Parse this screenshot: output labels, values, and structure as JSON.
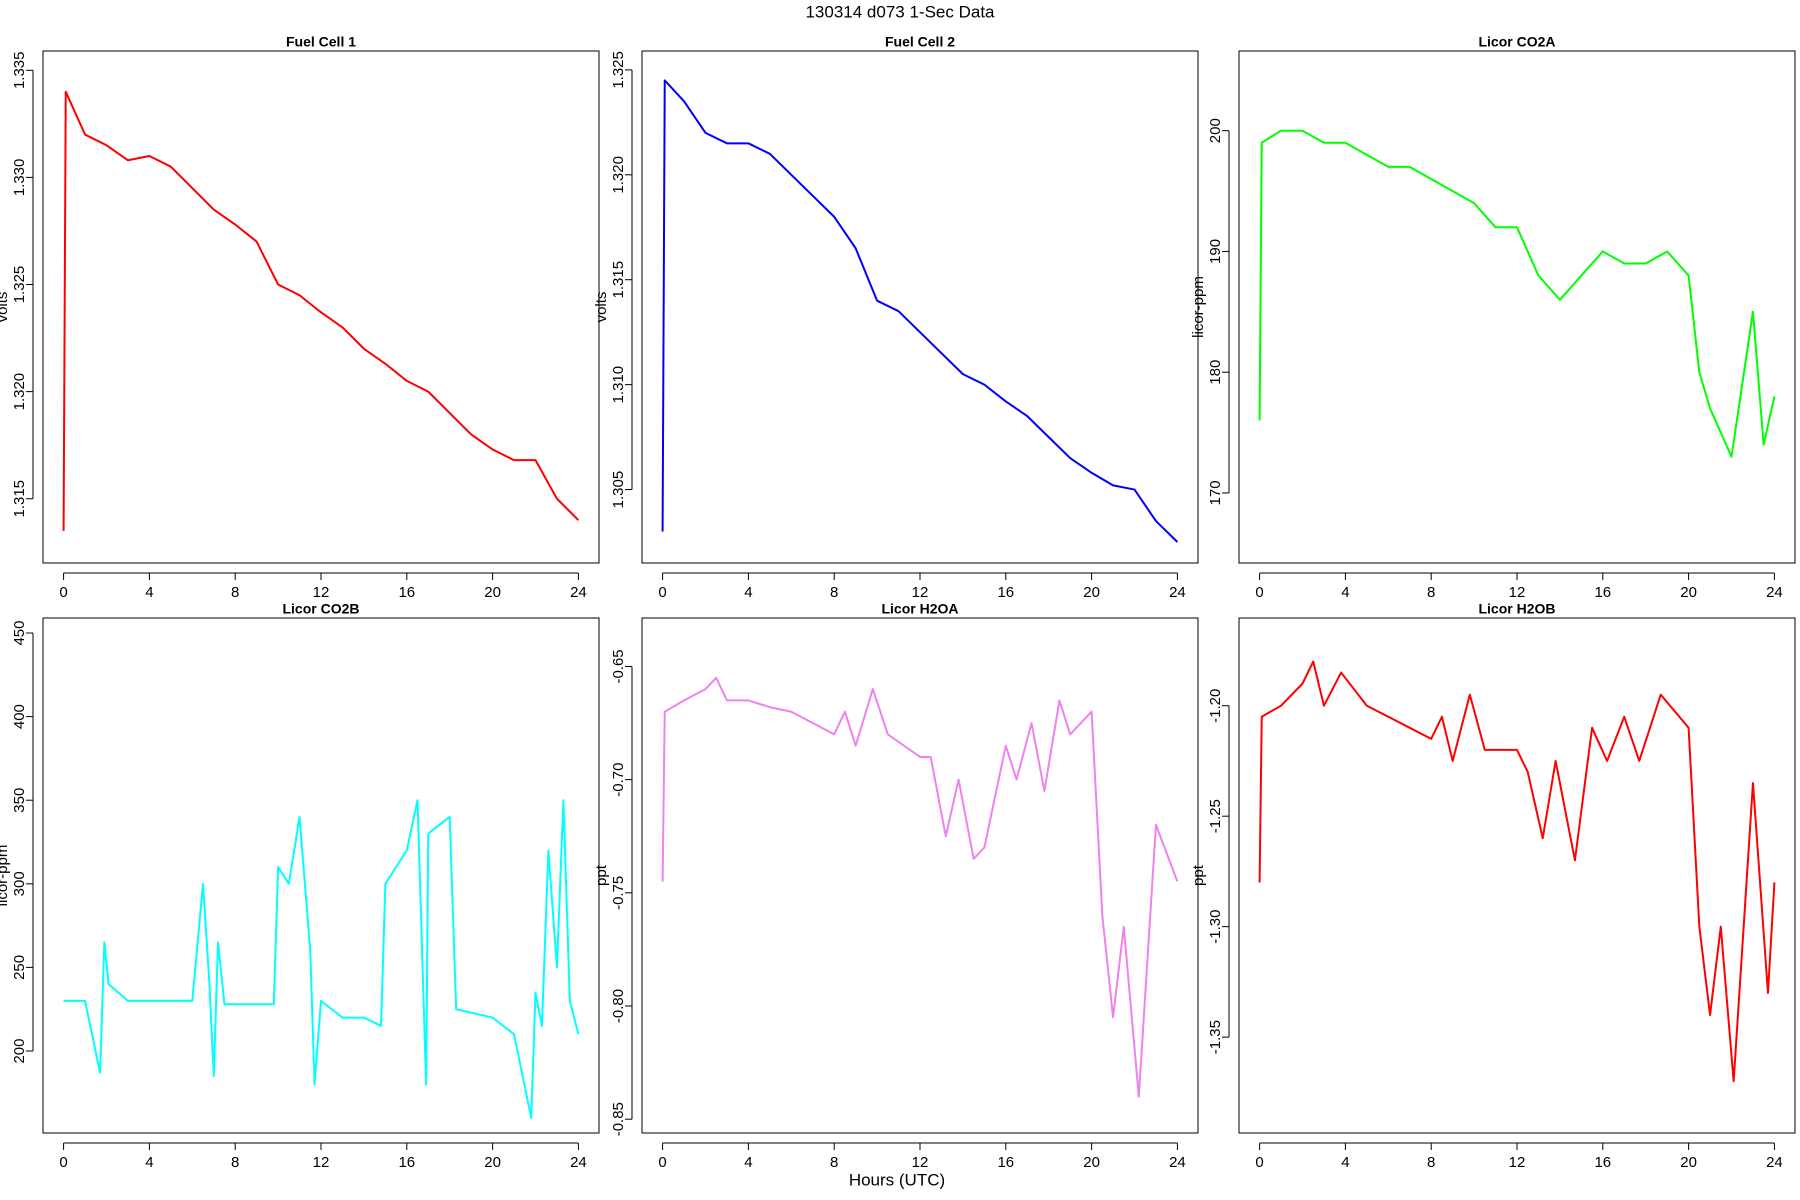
{
  "title": "130314   d073   1-Sec Data",
  "xlabel": "Hours (UTC)",
  "chart_data": [
    {
      "type": "line",
      "title": "Fuel Cell 1",
      "ylabel": "volts",
      "color": "#ff0000",
      "x": [
        0,
        0.1,
        1,
        2,
        3,
        4,
        5,
        6,
        7,
        8,
        9,
        10,
        11,
        12,
        13,
        14,
        15,
        16,
        17,
        18,
        19,
        20,
        21,
        22,
        23,
        24
      ],
      "values": [
        1.3135,
        1.334,
        1.332,
        1.3315,
        1.3308,
        1.331,
        1.3305,
        1.3295,
        1.3285,
        1.3278,
        1.327,
        1.325,
        1.3245,
        1.3237,
        1.323,
        1.322,
        1.3213,
        1.3205,
        1.32,
        1.319,
        1.318,
        1.3173,
        1.3168,
        1.3168,
        1.315,
        1.314
      ],
      "xlim": [
        -0.96,
        24.96
      ],
      "xticks": [
        0,
        4,
        8,
        12,
        16,
        20,
        24
      ],
      "ylim": [
        1.312,
        1.3359
      ],
      "yticks": [
        1.315,
        {
          "value": 1.32,
          "label": "1.320"
        },
        1.325,
        {
          "value": 1.33,
          "label": "1.330"
        },
        1.335
      ]
    },
    {
      "type": "line",
      "title": "Fuel Cell 2",
      "ylabel": "volts",
      "color": "#0000ff",
      "x": [
        0,
        0.1,
        1,
        2,
        3,
        4,
        5,
        6,
        7,
        8,
        9,
        10,
        11,
        12,
        13,
        14,
        15,
        16,
        17,
        18,
        19,
        20,
        21,
        22,
        23,
        24
      ],
      "values": [
        1.303,
        1.3245,
        1.3235,
        1.322,
        1.3215,
        1.3215,
        1.321,
        1.32,
        1.319,
        1.318,
        1.3165,
        1.314,
        1.3135,
        1.3125,
        1.3115,
        1.3105,
        1.31,
        1.3092,
        1.3085,
        1.3075,
        1.3065,
        1.3058,
        1.3052,
        1.305,
        1.3035,
        1.3025
      ],
      "xlim": [
        -0.96,
        24.96
      ],
      "xticks": [
        0,
        4,
        8,
        12,
        16,
        20,
        24
      ],
      "ylim": [
        1.3015,
        1.3259
      ],
      "yticks": [
        1.305,
        {
          "value": 1.31,
          "label": "1.310"
        },
        1.315,
        {
          "value": 1.32,
          "label": "1.320"
        },
        1.325
      ]
    },
    {
      "type": "line",
      "title": "Licor CO2A",
      "ylabel": "licor-ppm",
      "color": "#00ff00",
      "x": [
        0,
        0.1,
        1,
        2,
        3,
        4,
        5,
        6,
        7,
        8,
        9,
        10,
        11,
        12,
        13,
        14,
        15,
        16,
        17,
        18,
        19,
        20,
        20.5,
        21,
        22,
        23,
        23.5,
        24
      ],
      "values": [
        176,
        199,
        200,
        200,
        199,
        199,
        198,
        197,
        197,
        196,
        195,
        194,
        192,
        192,
        188,
        186,
        188,
        190,
        189,
        189,
        190,
        188,
        180,
        177,
        173,
        185,
        174,
        178
      ],
      "xlim": [
        -0.96,
        24.96
      ],
      "xticks": [
        0,
        4,
        8,
        12,
        16,
        20,
        24
      ],
      "ylim": [
        164.2,
        206.6
      ],
      "yticks": [
        170,
        180,
        190,
        200
      ]
    },
    {
      "type": "line",
      "title": "Licor CO2B",
      "ylabel": "licor-ppm",
      "color": "#00ffff",
      "x": [
        0,
        1,
        1.7,
        1.9,
        2.1,
        3,
        4,
        5,
        6,
        6.5,
        6.8,
        7,
        7.2,
        7.5,
        9,
        9.8,
        10,
        10.5,
        11,
        11.5,
        11.7,
        12,
        13,
        14,
        14.8,
        15,
        16,
        16.5,
        16.9,
        17,
        18,
        18.3,
        20,
        21,
        21.8,
        22,
        22.3,
        22.6,
        23,
        23.3,
        23.6,
        24
      ],
      "values": [
        230,
        230,
        187,
        265,
        240,
        230,
        230,
        230,
        230,
        300,
        240,
        185,
        265,
        228,
        228,
        228,
        310,
        300,
        340,
        260,
        180,
        230,
        220,
        220,
        215,
        300,
        320,
        350,
        180,
        330,
        340,
        225,
        220,
        210,
        160,
        235,
        215,
        320,
        250,
        350,
        230,
        210
      ],
      "xlim": [
        -0.96,
        24.96
      ],
      "xticks": [
        0,
        4,
        8,
        12,
        16,
        20,
        24
      ],
      "ylim": [
        150.97,
        458.98
      ],
      "yticks": [
        200,
        250,
        300,
        350,
        400,
        450
      ]
    },
    {
      "type": "line",
      "title": "Licor H2OA",
      "ylabel": "ppt",
      "color": "#ee82ee",
      "x": [
        0,
        0.1,
        1,
        2,
        2.5,
        3,
        4,
        5,
        6,
        7,
        8,
        8.5,
        9,
        9.8,
        10.5,
        12,
        12.5,
        13.2,
        13.8,
        14.5,
        15,
        16,
        16.5,
        17.2,
        17.8,
        18.5,
        19,
        20,
        20.5,
        21,
        21.5,
        22.2,
        23,
        24
      ],
      "values": [
        -0.745,
        -0.67,
        -0.665,
        -0.66,
        -0.655,
        -0.665,
        -0.665,
        -0.668,
        -0.67,
        -0.675,
        -0.68,
        -0.67,
        -0.685,
        -0.66,
        -0.68,
        -0.69,
        -0.69,
        -0.725,
        -0.7,
        -0.735,
        -0.73,
        -0.685,
        -0.7,
        -0.675,
        -0.705,
        -0.665,
        -0.68,
        -0.67,
        -0.76,
        -0.805,
        -0.765,
        -0.84,
        -0.72,
        -0.745
      ],
      "xlim": [
        -0.96,
        24.96
      ],
      "xticks": [
        0,
        4,
        8,
        12,
        16,
        20,
        24
      ],
      "ylim": [
        -0.8561,
        -0.6286
      ],
      "yticks": [
        -0.85,
        {
          "value": -0.8,
          "label": "-0.80"
        },
        -0.75,
        {
          "value": -0.7,
          "label": "-0.70"
        },
        -0.65
      ]
    },
    {
      "type": "line",
      "title": "Licor H2OB",
      "ylabel": "ppt",
      "color": "#ff0000",
      "x": [
        0,
        0.1,
        1,
        2,
        2.5,
        3,
        3.8,
        5,
        6,
        7,
        8,
        8.5,
        9,
        9.8,
        10.5,
        12,
        12.5,
        13.2,
        13.8,
        14.7,
        15.5,
        16.2,
        17,
        17.7,
        18.7,
        20,
        20.5,
        21,
        21.5,
        22.1,
        23,
        23.7,
        24
      ],
      "values": [
        -1.28,
        -1.205,
        -1.2,
        -1.19,
        -1.18,
        -1.2,
        -1.185,
        -1.2,
        -1.205,
        -1.21,
        -1.215,
        -1.205,
        -1.225,
        -1.195,
        -1.22,
        -1.22,
        -1.23,
        -1.26,
        -1.225,
        -1.27,
        -1.21,
        -1.225,
        -1.205,
        -1.225,
        -1.195,
        -1.21,
        -1.3,
        -1.34,
        -1.3,
        -1.37,
        -1.235,
        -1.33,
        -1.28
      ],
      "xlim": [
        -0.96,
        24.96
      ],
      "xticks": [
        0,
        4,
        8,
        12,
        16,
        20,
        24
      ],
      "ylim": [
        -1.3934,
        -1.1603
      ],
      "yticks": [
        -1.35,
        {
          "value": -1.3,
          "label": "-1.30"
        },
        -1.25,
        {
          "value": -1.2,
          "label": "-1.20"
        }
      ]
    }
  ]
}
